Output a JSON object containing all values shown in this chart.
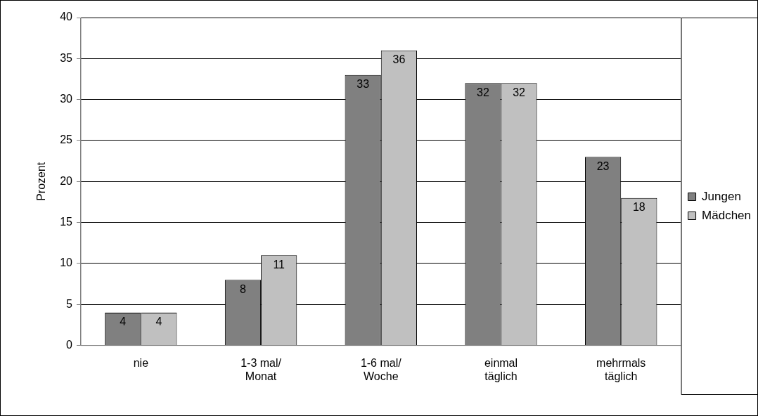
{
  "chart_data": {
    "type": "bar",
    "ylabel": "Prozent",
    "categories": [
      "nie",
      "1-3 mal/\nMonat",
      "1-6 mal/\nWoche",
      "einmal\ntäglich",
      "mehrmals\ntäglich"
    ],
    "series": [
      {
        "name": "Jungen",
        "color": "#808080",
        "values": [
          4,
          8,
          33,
          32,
          23
        ]
      },
      {
        "name": "Mädchen",
        "color": "#c0c0c0",
        "values": [
          4,
          11,
          36,
          32,
          18
        ]
      }
    ],
    "ylim": [
      0,
      40
    ],
    "yticks": [
      0,
      5,
      10,
      15,
      20,
      25,
      30,
      35,
      40
    ],
    "grid": "y",
    "legend": "right",
    "data_labels": true
  }
}
